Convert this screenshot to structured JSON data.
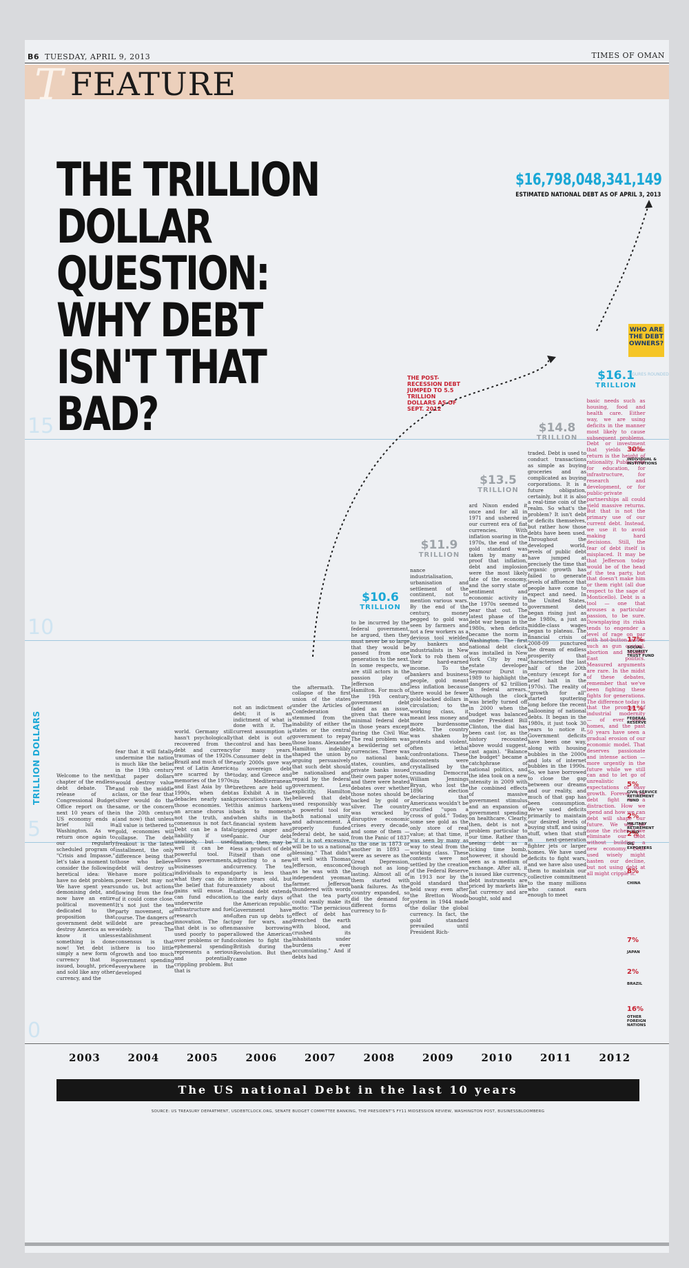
{
  "page_header": {
    "page_number": "B6",
    "date": "TUESDAY, APRIL 9, 2013",
    "publication": "TIMES OF OMAN"
  },
  "section": {
    "title": "FEATURE",
    "logo_letter": "T"
  },
  "headline": "THE TRILLION DOLLAR QUESTION: WHY DEBT ISN'T THAT BAD?",
  "total_debt": {
    "value": "$16,798,048,341,149",
    "label": "ESTIMATED NATIONAL DEBT AS OF APRIL 3, 2013"
  },
  "annotation": "THE POST-RECESSION DEBT JUMPED TO 5.5 TRILLION DOLLARS AS OF SEPT. 2012",
  "owners": {
    "box_label": "WHO ARE THE DEBT OWNERS?",
    "sub_label": "FIGURES ROUNDED",
    "rows": [
      {
        "percent": "30%",
        "name": "INDIVIDUAL & INSTITUTIONS"
      },
      {
        "percent": "17%",
        "name": "SOCIAL SECURITY TRUST FUND"
      },
      {
        "percent": "11%",
        "name": "FEDERAL RESERVE"
      },
      {
        "percent": "5%",
        "name": "CIVIL SERVICE RETIREMENT FUND"
      },
      {
        "percent": "2%",
        "name": "MILITARY RETIREMENT FUND"
      },
      {
        "percent": "2%",
        "name": "OIL EXPORTERS"
      },
      {
        "percent": "8%",
        "name": "CHINA"
      },
      {
        "percent": "7%",
        "name": "JAPAN"
      },
      {
        "percent": "2%",
        "name": "BRAZIL"
      },
      {
        "percent": "16%",
        "name": "OTHER FOREIGN NATIONS"
      }
    ]
  },
  "article_columns": [
    "Welcome to the next chapter of the endless debt debate. The release of a Congressional Budget Office report on the next 10 years of the US economy ends a brief lull in Washington. As we return once again to our regularly scheduled program of \"Crisis and Impasse,\" let's take a moment to consider the following heretical idea: We have no debt problem. We have spent years demonising debt, and now have an entire political movement dedicated to the proposition that government debt will destroy America as we know it unless something is done now! Yet debt is simply a new form of currency that is issued, bought, priced and sold like any other currency, and the",
    "fear that it will fatally undermine the nation is much like the belief in the 19th century that paper dollars would destroy value and rob the middle class, or the fear that silver would do the same, or the concern in the 20th century (and now) that unless all value is tethered to gold, economies will collapse. The debt freakout is the latest installment, the only difference being that those who believe debt will destroy us have more political power. Debt may not undo us, but actions flowing from the fear of it could come close. It's not just the tea party movement, of course. The dangers of debt are preached widely. The establishment consensus is that there is too little growth and too much government spending everywhere in the developed",
    "world. Germany still hasn't psychologically recovered from the debt and currency traumas of the 1920s. Brazil and much of the rest of Latin America are scarred by the memories of the 1970s and East Asia by the 1990s, when debt debacles nearly sank those economies. Yet an arcane chorus is not the truth, and consensus is not fact. Debt can be a fatal liability if used unwisely, but used well it can be a powerful tool. It allows governments, businesses and individuals to expand what they can do in the belief that future gains will ensue. It can fund education, underwrite infrastructure and fuel research and innovation. The fact that debt is so often used poorly to paper over problems or fund ephemeral spending represents a serious and potentially crippling problem. But that is",
    "not an indictment of debt; it is an indictment of what is done with it. The current assumption is that debt is out of control and has been for many years. Consumer debt in the early 2000s gave way to sovereign debt today, and Greece and its Mediterranean brethren are held up as Exhibit A in the prosecution's case. Yet this animus harkens back to moments when shifts in the financial system have triggered anger and panic. Our debt fixation, then, may be less a product of debt itself than one of adjusting to a new currency. The tea party is less than three years old, but anxiety about the national debt extends to the early days of the American republic. Government have often run up debts to pay for wars, and massive borrowing allowed the American colonies to fight the British during the Revolution. But then came",
    "the aftermath. The collapse of the first union of the states under the Articles of Confederation stemmed from the inability of either the states or the central government to repay those loans. Alexander Hamilton indelibly shaped the union by arguing persuasively that such debt should be nationalised and repaid by the federal government. Less explicitly, Hamilton believed that debt used responsibly was a powerful tool for both national unity and advancement. A properly funded federal debt, he said, \"if it is not excessive, will be to us a national blessing.\" That didn't sit well with Thomas Jefferson, ensconced as he was with the independent yeoman farmer. Jefferson thundered with words that the tea party could easily make its motto: \"The pernicious effect of debt has drenched the earth with blood, and crushed its inhabitants under burdens ever accumulating.\" And if debts had",
    "to be incurred by the federal government, he argued, then they must never be so large that they would be passed from one generation to the next. In some respects, we are still actors in the passion play of Jefferson and Hamilton. For much of the 19th century, government debt faded as an issue, given that there was minimal federal debt in those years except during the Civil War. The real problem was a bewildering set of currencies. There was no national bank; states, counties, and private banks issued their own paper notes, and there were heated debates over whether those notes should be backed by gold or silver. The country was wracked by disruptive economic crises every decade, and some of them — from the Panic of 1837 to the one in 1873 or another in 1893 — were as severe as the Great Depression, though not as long-lasting. Almost all of them started with bank failures. As the country expanded, so did the demand for different forms of currency to fi-",
    "nance industrialisation, urbanisation and settlement of the continent, not to mention various wars. By the end of the century, money pegged to gold was seen by farmers and not a few workers as a devious tool wielded by bankers and industrialists in New York to rob them of their hard-earned income. To the bankers and business people, gold meant less inflation because there would be fewer gold-backed dollars in circulation; to the working class, it meant less money and more burdensome debts. The country was shaken by protests and violent, often lethal confrontations. These discontents were crystallised by the crusading Democrat William Jennings Bryan, who lost the 1896 election declaring that Americans wouldn't be crucified \"upon a cross of gold.\" Today, some see gold as the only store of real value; at that time, it was seen by many as way to steal from the working class. These contests were not settled by the creation of the Federal Reserve in 1913 nor by the gold standard that held sway even after the Bretton Woods system in 1944 made the dollar the global currency. In fact, the gold standard prevailed until President Rich-",
    "ard Nixon ended it once and for all in 1971 and ushered in our current era of fiat currencies. With inflation soaring in the 1970s, the end of the gold standard was taken by many as proof that inflation, debt and implosion were the most likely fate of the economy, and the sorry state of sentiment and economic activity in the 1970s seemed to bear that out. The latest phase of the debt war began in the 1980s, when deficits became the norm in Washington. The first national debt clock was installed in New York City by real estate developer Seymour Durst in 1989 to highlight the dangers of $2 trillion in federal arrears. Although the clock was briefly turned off in 2000 when the budget was balanced under President Bill Clinton, the dial has been cast (or, as the history recounted above would suggest, cast again). \"Balance the budget\" became a catchphrase of national politics, and the idea took on a new intensity in 2009 with the combined effects of massive government stimulus and an expansion of government spending on healthcare. Clearly, then, debt is not a problem particular to our time. Rather than seeing debt as a ticking time bomb, however, it should be seen as a medium of exchange. After all, it is issued like currency, debt instruments are priced by markets like fiat currency and are bought, sold and",
    "traded. Debt is used to conduct transactions as simple as buying groceries and as complicated as buying corporations. It is a future obligation, certainly, but it is also a real-time coin of the realm. So what's the problem? It isn't debt or deficits themselves, but rather how those debts have been used. Throughout the developed world, levels of public debt have jumped at precisely the time that organic growth has failed to generate levels of affluence that people have come to expect and need. In the United States, government debt began rising just as the 1980s, a just as middle-class wages began to plateau. The financial crisis of 2008-09 punctured the dream of endless prosperity that characterised the last half of the 20th century (except for a brief halt in the 1970s). The reality of \"growth for all\" started sputtering long before the recent ballooning of national debts. It began in the 1980s, it just took 30 years to notice it. Government deficits have been one way, along with housing bubbles in the 2000s and lots of internet bubbles in the 1990s. So, we have borrowed to close the gap between our dreams and our reality, and much of that gap has been consumption. We've used deficits primarily to maintain our desired levels of buying stuff, and using stuff, when that stuff in next-generation fighter jets or larger homes. We have used deficits to fight wars, and we have also used them to maintain our collective commitment to the many millions who cannot earn enough to meet",
    "basic needs such as housing, food and health care. Either way, we are using deficits in the manner most likely to cause subsequent problems. Debt or investment that yields future return is the height of rationality. Public debt for education, for infrastructure, for research and development, or for public-private partnerships all could yield massive returns. But that is not the primary use of our current debt. Instead, we use it to avoid making hard decisions. Still, the fear of debt itself is misplaced. It may be that Jefferson today would be of the head of the tea party, but that doesn't make him or them right (all due respect to the sage of Monticello). Debt is a tool — one that arouses a particular passion, to be sure. Downplaying its risks tends to engender a level of rage on par with hot-button issues such as gun control, abortion and Middle East politics. Measured arguments are rare. In the midst of these debates, remember that we've been fighting these fights for generations. The difference today is that the promise of industrial modernity — of ever more homes, and the past 50 years have seen a gradual erosion of our economic model. That deserves passionate and intense action — more urgently in the future while we still can and to let go of unrealistic expectations of easy growth. Forever. The debt fight is a distraction. How we spend and how we can debt will shape our future. We will be none the richer if we eliminate our debt without building a new economy. Debt used wisely might hasten our decline, but not using debt at all might cripple it."
  ],
  "chart_data": {
    "type": "bar",
    "title": "The US national Debt in the last 10 years",
    "xlabel": "",
    "ylabel": "TRILLION DOLLARS",
    "ylim": [
      0,
      17
    ],
    "yticks": [
      "0",
      "5",
      "10",
      "15"
    ],
    "categories": [
      "2003",
      "2004",
      "2005",
      "2006",
      "2007",
      "2008",
      "2009",
      "2010",
      "2011",
      "2012"
    ],
    "values": [
      6.8,
      7.4,
      7.9,
      8.5,
      9.0,
      10.6,
      11.9,
      13.5,
      14.8,
      16.1
    ],
    "data_labels": [
      {
        "category": "2008",
        "value": "$10.6",
        "unit": "TRILLION",
        "color": "#1ba8d6"
      },
      {
        "category": "2009",
        "value": "$11.9",
        "unit": "TRILLION",
        "color": "#9da3a8"
      },
      {
        "category": "2010",
        "value": "$13.5",
        "unit": "TRILLION",
        "color": "#9da3a8"
      },
      {
        "category": "2011",
        "value": "$14.8",
        "unit": "TRILLION",
        "color": "#9da3a8"
      },
      {
        "category": "2012",
        "value": "$16.1",
        "unit": "TRILLION",
        "color": "#1ba8d6"
      }
    ],
    "grid": true
  },
  "source": "SOURCE: US TREASURY DEPARTMENT, USDEBTCLOCK.ORG, SENATE BUDGET COMMITTEE BANKING, THE PRESIDENT'S FY11 MIDSESSION REVIEW, WASHINGTON POST, BUSINESSBLOOMBERG",
  "colors": {
    "accent_blue": "#1ba8d6",
    "accent_red": "#c62231",
    "band": "#ecd0bc",
    "owners_box": "#f5c526"
  }
}
